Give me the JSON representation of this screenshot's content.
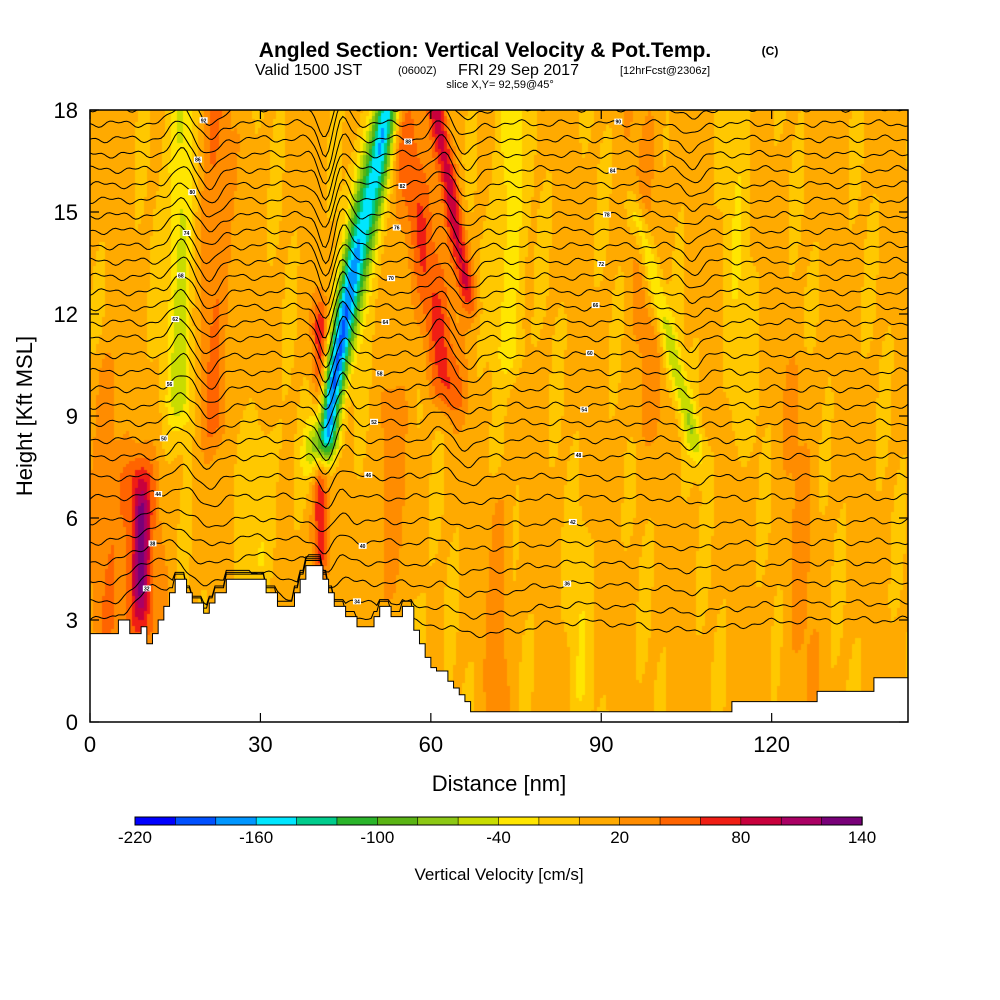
{
  "colors": {
    "background": "#ffffff",
    "terrain": "#ffffff",
    "contour": "#000000",
    "frame": "#000000"
  },
  "colorbar": {
    "tick_labels": [
      "-220",
      "-160",
      "-100",
      "-40",
      "20",
      "80",
      "140"
    ],
    "tick_values": [
      -220,
      -160,
      -100,
      -40,
      20,
      80,
      140
    ],
    "label": "Vertical Velocity [cm/s]",
    "levels": [
      -220,
      -200,
      -180,
      -160,
      -140,
      -120,
      -100,
      -80,
      -60,
      -40,
      -20,
      0,
      20,
      40,
      60,
      80,
      100,
      120,
      140
    ],
    "colors": [
      "#0000ff",
      "#0050ff",
      "#0096ff",
      "#00e6ff",
      "#00cc8c",
      "#2ab42a",
      "#5ab414",
      "#8cc814",
      "#c8dc00",
      "#ffe600",
      "#ffc800",
      "#ffaa00",
      "#ff8c00",
      "#ff6400",
      "#f01e14",
      "#c8003c",
      "#aa0064",
      "#780078"
    ]
  },
  "chart_data": {
    "type": "heatmap",
    "title": "Angled Section: Vertical Velocity & Pot.Temp.",
    "title_unit": "(C)",
    "subtitle_parts": [
      "Valid 1500 JST",
      "(0600Z)",
      "FRI 29 Sep 2017",
      "[12hrFcst@2306z]"
    ],
    "slice_note": "slice X,Y= 92,59@45°",
    "xlabel": "Distance [nm]",
    "ylabel": "Height [Kft MSL]",
    "xlim": [
      0,
      144
    ],
    "ylim": [
      0,
      18
    ],
    "x_ticks": [
      0,
      30,
      60,
      90,
      120
    ],
    "x_tick_labels": [
      "0",
      "30",
      "60",
      "90",
      "120"
    ],
    "y_ticks": [
      0,
      3,
      6,
      9,
      12,
      15,
      18
    ],
    "y_tick_labels": [
      "0",
      "3",
      "6",
      "9",
      "12",
      "15",
      "18"
    ],
    "background_velocity": 5,
    "velocity_features": [
      {
        "x": 41.5,
        "slope": 1.1,
        "width": 2.4,
        "amp": -215,
        "y0": 8.5,
        "y1": 18
      },
      {
        "x": 40.5,
        "slope": 0.0,
        "width": 1.4,
        "amp": 75,
        "y0": 5,
        "y1": 11.5
      },
      {
        "x": 44.3,
        "slope": 0.75,
        "width": 1.8,
        "amp": 50,
        "y0": 9.5,
        "y1": 18
      },
      {
        "x": 62.5,
        "slope": -1.0,
        "width": 3.0,
        "amp": 60,
        "y0": 10,
        "y1": 18
      },
      {
        "x": 66.0,
        "slope": -1.0,
        "width": 1.6,
        "amp": 80,
        "y0": 13,
        "y1": 18
      },
      {
        "x": 22.0,
        "slope": 0.0,
        "width": 2.6,
        "amp": 40,
        "y0": 9,
        "y1": 18
      },
      {
        "x": 16.0,
        "slope": 0.0,
        "width": 2.3,
        "amp": -55,
        "y0": 9.5,
        "y1": 18
      },
      {
        "x": 8.5,
        "slope": 0.0,
        "width": 3.5,
        "amp": 55,
        "y0": 3,
        "y1": 7
      },
      {
        "x": 9.0,
        "slope": 0.0,
        "width": 1.4,
        "amp": 65,
        "y0": 4,
        "y1": 6
      },
      {
        "x": 106.0,
        "slope": -1.5,
        "width": 1.6,
        "amp": -55,
        "y0": 8.5,
        "y1": 14.5
      },
      {
        "x": 74.0,
        "slope": 0.0,
        "width": 2.4,
        "amp": -40,
        "y0": 11,
        "y1": 18
      },
      {
        "x": 98.0,
        "slope": 0.0,
        "width": 3.0,
        "amp": 18,
        "y0": 9,
        "y1": 18
      },
      {
        "x": 53.0,
        "slope": 0.0,
        "width": 2.5,
        "amp": 25,
        "y0": 4,
        "y1": 9
      },
      {
        "x": 86.0,
        "slope": 0.0,
        "width": 2.0,
        "amp": -20,
        "y0": 1,
        "y1": 5
      },
      {
        "x": 3.0,
        "slope": 0.0,
        "width": 2.5,
        "amp": 30,
        "y0": 3,
        "y1": 10
      },
      {
        "x": 30.0,
        "slope": 0.0,
        "width": 3.5,
        "amp": -20,
        "y0": 5,
        "y1": 8
      },
      {
        "x": 57.0,
        "slope": 0.0,
        "width": 2.0,
        "amp": -25,
        "y0": 0.5,
        "y1": 3
      },
      {
        "x": 72.0,
        "slope": 0.0,
        "width": 2.0,
        "amp": 25,
        "y0": 0.5,
        "y1": 6
      },
      {
        "x": 125.0,
        "slope": 0.0,
        "width": 3.0,
        "amp": 15,
        "y0": 1,
        "y1": 10
      },
      {
        "x": 114.0,
        "slope": 0.0,
        "width": 2.5,
        "amp": -18,
        "y0": 9,
        "y1": 18
      }
    ],
    "terrain_profile": [
      [
        0,
        2.6
      ],
      [
        5,
        2.6
      ],
      [
        5,
        3.0
      ],
      [
        7,
        3.0
      ],
      [
        7,
        2.6
      ],
      [
        9,
        2.6
      ],
      [
        9,
        2.8
      ],
      [
        10,
        2.8
      ],
      [
        10,
        2.3
      ],
      [
        11,
        2.3
      ],
      [
        11,
        2.6
      ],
      [
        12,
        2.6
      ],
      [
        12,
        3.0
      ],
      [
        13,
        3.0
      ],
      [
        13,
        3.4
      ],
      [
        14,
        3.4
      ],
      [
        14,
        3.8
      ],
      [
        15,
        3.8
      ],
      [
        15,
        4.2
      ],
      [
        17,
        4.2
      ],
      [
        17,
        3.8
      ],
      [
        18,
        3.8
      ],
      [
        18,
        3.5
      ],
      [
        20,
        3.5
      ],
      [
        20,
        3.2
      ],
      [
        21,
        3.2
      ],
      [
        21,
        3.5
      ],
      [
        22,
        3.5
      ],
      [
        22,
        3.8
      ],
      [
        24,
        3.8
      ],
      [
        24,
        4.2
      ],
      [
        31,
        4.2
      ],
      [
        31,
        3.8
      ],
      [
        33,
        3.8
      ],
      [
        33,
        3.4
      ],
      [
        36,
        3.4
      ],
      [
        36,
        3.8
      ],
      [
        37,
        3.8
      ],
      [
        37,
        4.2
      ],
      [
        38,
        4.2
      ],
      [
        38,
        4.6
      ],
      [
        41,
        4.6
      ],
      [
        41,
        4.2
      ],
      [
        42,
        4.2
      ],
      [
        42,
        3.8
      ],
      [
        43,
        3.8
      ],
      [
        43,
        3.4
      ],
      [
        45,
        3.4
      ],
      [
        45,
        3.1
      ],
      [
        47,
        3.1
      ],
      [
        47,
        2.8
      ],
      [
        50,
        2.8
      ],
      [
        50,
        3.1
      ],
      [
        51,
        3.1
      ],
      [
        51,
        3.4
      ],
      [
        53,
        3.4
      ],
      [
        53,
        3.1
      ],
      [
        55,
        3.1
      ],
      [
        55,
        3.4
      ],
      [
        57,
        3.4
      ],
      [
        57,
        2.7
      ],
      [
        58,
        2.7
      ],
      [
        58,
        2.3
      ],
      [
        59,
        2.3
      ],
      [
        59,
        1.9
      ],
      [
        60,
        1.9
      ],
      [
        60,
        1.6
      ],
      [
        61,
        1.6
      ],
      [
        61,
        1.5
      ],
      [
        63,
        1.5
      ],
      [
        63,
        1.2
      ],
      [
        64,
        1.2
      ],
      [
        64,
        1.0
      ],
      [
        65,
        1.0
      ],
      [
        65,
        0.8
      ],
      [
        66,
        0.8
      ],
      [
        66,
        0.6
      ],
      [
        67,
        0.6
      ],
      [
        67,
        0.3
      ],
      [
        113,
        0.3
      ],
      [
        113,
        0.6
      ],
      [
        128,
        0.6
      ],
      [
        128,
        0.9
      ],
      [
        138,
        0.9
      ],
      [
        138,
        1.3
      ],
      [
        144,
        1.3
      ]
    ],
    "isentropes": {
      "count": 31,
      "base_heights": [
        3.0,
        3.5,
        4.1,
        4.7,
        5.3,
        5.9,
        6.6,
        7.2,
        7.8,
        8.3,
        8.8,
        9.3,
        9.8,
        10.3,
        10.8,
        11.3,
        11.75,
        12.2,
        12.65,
        13.1,
        13.55,
        14.0,
        14.45,
        14.9,
        15.35,
        15.8,
        16.25,
        16.7,
        17.15,
        17.6,
        18.05
      ],
      "first_value": 32,
      "step": 2
    },
    "grid": false,
    "legend_position": "bottom"
  }
}
